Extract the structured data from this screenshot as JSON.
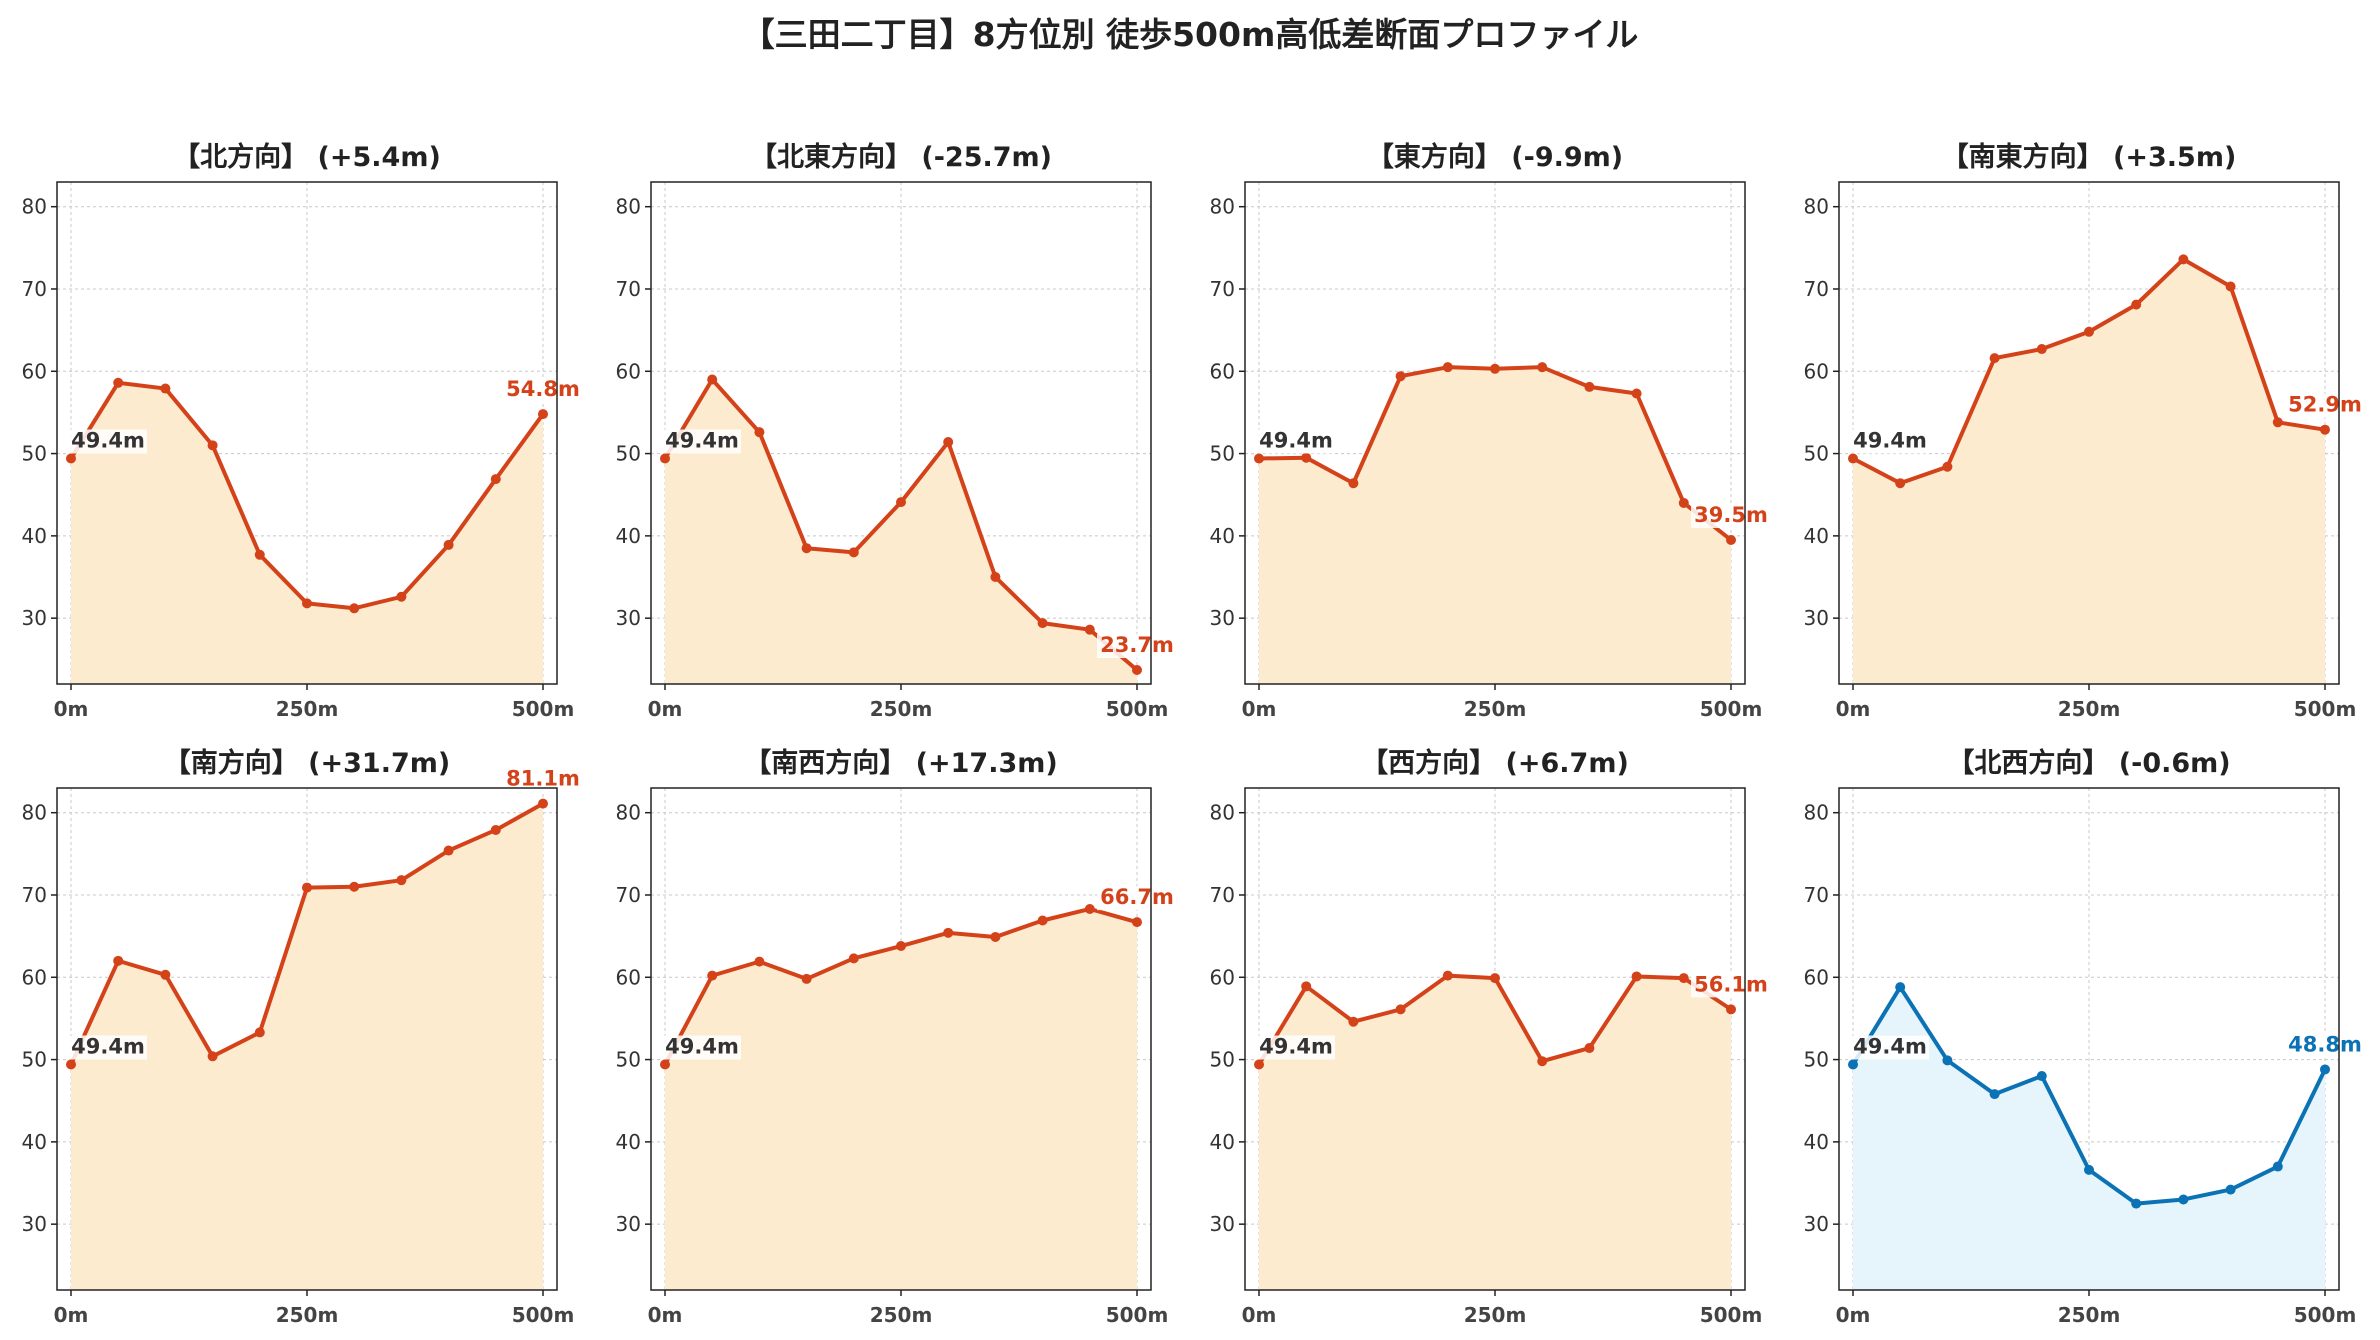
{
  "title": "【三田二丁目】8方位別 徒歩500m高低差断面プロファイル",
  "colors": {
    "up_line": "#d4421a",
    "up_fill": "#fdebd0",
    "down_line": "#0a72b5",
    "down_fill": "#e6f4fb",
    "start_label": "#333333",
    "grid": "#c8c8c8"
  },
  "chart_data": [
    {
      "type": "line",
      "title": "【北方向】 (+5.4m)",
      "theme": "up",
      "x": [
        0,
        50,
        100,
        150,
        200,
        250,
        300,
        350,
        400,
        450,
        500
      ],
      "values": [
        49.4,
        58.6,
        57.9,
        51.0,
        37.7,
        31.8,
        31.2,
        32.6,
        38.9,
        46.9,
        54.8
      ],
      "start_label": "49.4m",
      "end_label": "54.8m",
      "xticks": [
        "0m",
        "250m",
        "500m"
      ],
      "yticks": [
        30,
        40,
        50,
        60,
        70,
        80
      ],
      "ylim": [
        22,
        83
      ],
      "grid": true
    },
    {
      "type": "line",
      "title": "【北東方向】 (-25.7m)",
      "theme": "up",
      "x": [
        0,
        50,
        100,
        150,
        200,
        250,
        300,
        350,
        400,
        450,
        500
      ],
      "values": [
        49.4,
        59.0,
        52.6,
        38.5,
        38.0,
        44.1,
        51.4,
        35.0,
        29.4,
        28.6,
        23.7
      ],
      "start_label": "49.4m",
      "end_label": "23.7m",
      "xticks": [
        "0m",
        "250m",
        "500m"
      ],
      "yticks": [
        30,
        40,
        50,
        60,
        70,
        80
      ],
      "ylim": [
        22,
        83
      ],
      "grid": true
    },
    {
      "type": "line",
      "title": "【東方向】 (-9.9m)",
      "theme": "up",
      "x": [
        0,
        50,
        100,
        150,
        200,
        250,
        300,
        350,
        400,
        450,
        500
      ],
      "values": [
        49.4,
        49.5,
        46.4,
        59.4,
        60.5,
        60.3,
        60.5,
        58.1,
        57.3,
        44.0,
        39.5
      ],
      "start_label": "49.4m",
      "end_label": "39.5m",
      "xticks": [
        "0m",
        "250m",
        "500m"
      ],
      "yticks": [
        30,
        40,
        50,
        60,
        70,
        80
      ],
      "ylim": [
        22,
        83
      ],
      "grid": true
    },
    {
      "type": "line",
      "title": "【南東方向】 (+3.5m)",
      "theme": "up",
      "x": [
        0,
        50,
        100,
        150,
        200,
        250,
        300,
        350,
        400,
        450,
        500
      ],
      "values": [
        49.4,
        46.4,
        48.4,
        61.6,
        62.7,
        64.8,
        68.1,
        73.6,
        70.3,
        53.8,
        52.9
      ],
      "start_label": "49.4m",
      "end_label": "52.9m",
      "xticks": [
        "0m",
        "250m",
        "500m"
      ],
      "yticks": [
        30,
        40,
        50,
        60,
        70,
        80
      ],
      "ylim": [
        22,
        83
      ],
      "grid": true
    },
    {
      "type": "line",
      "title": "【南方向】 (+31.7m)",
      "theme": "up",
      "x": [
        0,
        50,
        100,
        150,
        200,
        250,
        300,
        350,
        400,
        450,
        500
      ],
      "values": [
        49.4,
        62.0,
        60.3,
        50.4,
        53.3,
        70.9,
        71.0,
        71.8,
        75.4,
        77.9,
        81.1
      ],
      "start_label": "49.4m",
      "end_label": "81.1m",
      "xticks": [
        "0m",
        "250m",
        "500m"
      ],
      "yticks": [
        30,
        40,
        50,
        60,
        70,
        80
      ],
      "ylim": [
        22,
        83
      ],
      "grid": true
    },
    {
      "type": "line",
      "title": "【南西方向】 (+17.3m)",
      "theme": "up",
      "x": [
        0,
        50,
        100,
        150,
        200,
        250,
        300,
        350,
        400,
        450,
        500
      ],
      "values": [
        49.4,
        60.2,
        61.9,
        59.8,
        62.3,
        63.8,
        65.4,
        64.9,
        66.9,
        68.3,
        66.7
      ],
      "start_label": "49.4m",
      "end_label": "66.7m",
      "xticks": [
        "0m",
        "250m",
        "500m"
      ],
      "yticks": [
        30,
        40,
        50,
        60,
        70,
        80
      ],
      "ylim": [
        22,
        83
      ],
      "grid": true
    },
    {
      "type": "line",
      "title": "【西方向】 (+6.7m)",
      "theme": "up",
      "x": [
        0,
        50,
        100,
        150,
        200,
        250,
        300,
        350,
        400,
        450,
        500
      ],
      "values": [
        49.4,
        58.9,
        54.6,
        56.1,
        60.2,
        59.9,
        49.8,
        51.4,
        60.1,
        59.9,
        56.1
      ],
      "start_label": "49.4m",
      "end_label": "56.1m",
      "xticks": [
        "0m",
        "250m",
        "500m"
      ],
      "yticks": [
        30,
        40,
        50,
        60,
        70,
        80
      ],
      "ylim": [
        22,
        83
      ],
      "grid": true
    },
    {
      "type": "line",
      "title": "【北西方向】 (-0.6m)",
      "theme": "down",
      "x": [
        0,
        50,
        100,
        150,
        200,
        250,
        300,
        350,
        400,
        450,
        500
      ],
      "values": [
        49.4,
        58.8,
        49.9,
        45.8,
        48.0,
        36.6,
        32.5,
        33.0,
        34.2,
        37.0,
        48.8
      ],
      "start_label": "49.4m",
      "end_label": "48.8m",
      "xticks": [
        "0m",
        "250m",
        "500m"
      ],
      "yticks": [
        30,
        40,
        50,
        60,
        70,
        80
      ],
      "ylim": [
        22,
        83
      ],
      "grid": true
    }
  ]
}
